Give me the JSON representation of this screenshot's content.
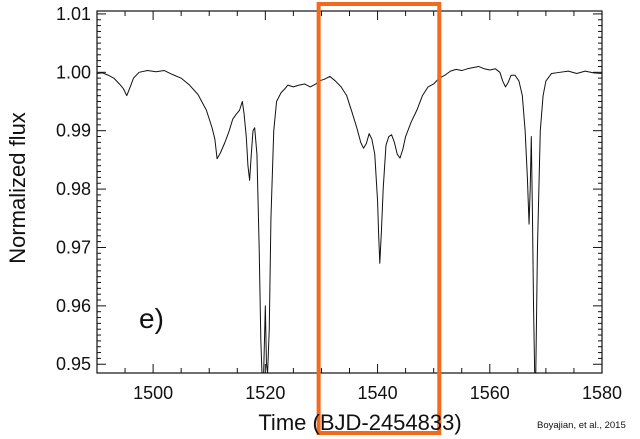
{
  "chart_data": {
    "type": "line",
    "title": "",
    "xlabel": "Time (BJD-2454833)",
    "ylabel": "Normalized flux",
    "xlim": [
      1490,
      1580
    ],
    "ylim": [
      0.9485,
      1.0105
    ],
    "x_ticks": [
      1500,
      1520,
      1540,
      1560,
      1580
    ],
    "x_tick_labels": [
      "1500",
      "1520",
      "1540",
      "1560",
      "1580"
    ],
    "y_ticks": [
      0.95,
      0.96,
      0.97,
      0.98,
      0.99,
      1.0,
      1.01
    ],
    "y_tick_labels": [
      "0.95",
      "0.96",
      "0.97",
      "0.98",
      "0.99",
      "1.00",
      "1.01"
    ],
    "grid": false,
    "panel_label": "e)",
    "credit": "Boyajian, et al., 2015",
    "line_color": "#111111",
    "highlight": {
      "x_range": [
        1529.5,
        1551
      ],
      "color": "#f26a1b"
    },
    "series": [
      {
        "points": [
          [
            1490.0,
            0.9998
          ],
          [
            1491.0,
            0.9999
          ],
          [
            1492.0,
            0.9995
          ],
          [
            1493.0,
            0.999
          ],
          [
            1494.0,
            0.998
          ],
          [
            1494.7,
            0.9972
          ],
          [
            1495.3,
            0.996
          ],
          [
            1495.8,
            0.9972
          ],
          [
            1496.5,
            0.999
          ],
          [
            1497.5,
            1.0
          ],
          [
            1499.0,
            1.0003
          ],
          [
            1500.5,
            1.0001
          ],
          [
            1502.0,
            1.0003
          ],
          [
            1503.5,
            0.9996
          ],
          [
            1505.0,
            0.999
          ],
          [
            1506.5,
            0.9978
          ],
          [
            1508.0,
            0.9962
          ],
          [
            1509.5,
            0.9935
          ],
          [
            1510.5,
            0.9905
          ],
          [
            1511.0,
            0.9886
          ],
          [
            1511.4,
            0.9852
          ],
          [
            1512.0,
            0.9862
          ],
          [
            1512.8,
            0.988
          ],
          [
            1513.5,
            0.9898
          ],
          [
            1514.2,
            0.992
          ],
          [
            1514.8,
            0.9928
          ],
          [
            1515.4,
            0.9935
          ],
          [
            1515.9,
            0.995
          ],
          [
            1516.2,
            0.993
          ],
          [
            1516.6,
            0.989
          ],
          [
            1516.9,
            0.984
          ],
          [
            1517.2,
            0.9815
          ],
          [
            1517.5,
            0.986
          ],
          [
            1517.8,
            0.99
          ],
          [
            1518.1,
            0.9905
          ],
          [
            1518.5,
            0.986
          ],
          [
            1518.9,
            0.97
          ],
          [
            1519.2,
            0.954
          ],
          [
            1519.4,
            0.9485
          ],
          [
            1519.7,
            0.9485
          ],
          [
            1520.0,
            0.96
          ],
          [
            1520.2,
            0.95
          ],
          [
            1520.4,
            0.9485
          ],
          [
            1520.7,
            0.956
          ],
          [
            1521.0,
            0.975
          ],
          [
            1521.5,
            0.99
          ],
          [
            1522.0,
            0.995
          ],
          [
            1522.8,
            0.9965
          ],
          [
            1523.5,
            0.9972
          ],
          [
            1524.0,
            0.9978
          ],
          [
            1525.0,
            0.9975
          ],
          [
            1526.0,
            0.9978
          ],
          [
            1527.0,
            0.998
          ],
          [
            1528.0,
            0.9975
          ],
          [
            1529.0,
            0.998
          ],
          [
            1529.5,
            0.9985
          ],
          [
            1530.5,
            0.9988
          ],
          [
            1531.5,
            0.9993
          ],
          [
            1532.5,
            0.9985
          ],
          [
            1533.5,
            0.9975
          ],
          [
            1534.5,
            0.996
          ],
          [
            1535.5,
            0.993
          ],
          [
            1536.3,
            0.9905
          ],
          [
            1537.0,
            0.988
          ],
          [
            1537.5,
            0.987
          ],
          [
            1538.0,
            0.9878
          ],
          [
            1538.5,
            0.9895
          ],
          [
            1539.0,
            0.9885
          ],
          [
            1539.5,
            0.986
          ],
          [
            1540.0,
            0.978
          ],
          [
            1540.2,
            0.972
          ],
          [
            1540.4,
            0.9673
          ],
          [
            1540.7,
            0.973
          ],
          [
            1541.0,
            0.98
          ],
          [
            1541.5,
            0.9875
          ],
          [
            1542.0,
            0.989
          ],
          [
            1542.5,
            0.9893
          ],
          [
            1543.0,
            0.988
          ],
          [
            1543.5,
            0.986
          ],
          [
            1544.0,
            0.9853
          ],
          [
            1544.5,
            0.9868
          ],
          [
            1545.0,
            0.989
          ],
          [
            1546.0,
            0.9915
          ],
          [
            1547.0,
            0.9935
          ],
          [
            1548.0,
            0.996
          ],
          [
            1549.0,
            0.9975
          ],
          [
            1550.0,
            0.998
          ],
          [
            1551.0,
            0.999
          ],
          [
            1552.0,
            0.9995
          ],
          [
            1553.0,
            1.0002
          ],
          [
            1554.0,
            1.0005
          ],
          [
            1555.0,
            1.0003
          ],
          [
            1556.0,
            1.0006
          ],
          [
            1557.0,
            1.0008
          ],
          [
            1558.0,
            1.001
          ],
          [
            1559.0,
            1.0006
          ],
          [
            1560.0,
            1.0004
          ],
          [
            1561.0,
            1.0006
          ],
          [
            1561.8,
            1.0
          ],
          [
            1562.3,
            0.9985
          ],
          [
            1562.8,
            0.9975
          ],
          [
            1563.3,
            0.9983
          ],
          [
            1563.8,
            0.9995
          ],
          [
            1564.5,
            0.9995
          ],
          [
            1565.2,
            0.9985
          ],
          [
            1565.8,
            0.996
          ],
          [
            1566.3,
            0.99
          ],
          [
            1566.7,
            0.982
          ],
          [
            1567.0,
            0.974
          ],
          [
            1567.2,
            0.98
          ],
          [
            1567.4,
            0.989
          ],
          [
            1567.6,
            0.976
          ],
          [
            1567.8,
            0.96
          ],
          [
            1568.0,
            0.9485
          ],
          [
            1568.2,
            0.9485
          ],
          [
            1568.5,
            0.97
          ],
          [
            1569.0,
            0.99
          ],
          [
            1569.5,
            0.996
          ],
          [
            1570.0,
            0.9985
          ],
          [
            1571.0,
            0.9998
          ],
          [
            1572.5,
            1.0
          ],
          [
            1574.0,
            1.0002
          ],
          [
            1575.5,
            0.9998
          ],
          [
            1577.0,
            1.0002
          ],
          [
            1578.5,
            0.9999
          ],
          [
            1580.0,
            0.9998
          ]
        ]
      }
    ]
  }
}
